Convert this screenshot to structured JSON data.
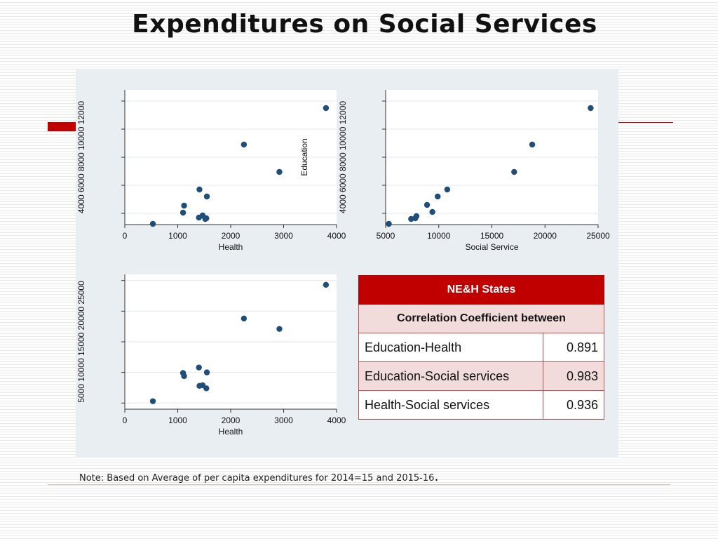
{
  "page": {
    "title": "Expenditures on Social Services"
  },
  "note": {
    "text": "Note: Based on Average of per capita expenditures for 2014=15 and 2015-16",
    "end_mark": "."
  },
  "colors": {
    "accent": "#c00000",
    "marker": "#1f4e79",
    "panel": "#e9eef2"
  },
  "table": {
    "header": "NE&H States",
    "subheader": "Correlation Coefficient between",
    "rows": [
      {
        "label": "Education-Health",
        "value": "0.891"
      },
      {
        "label": "Education-Social services",
        "value": "0.983"
      },
      {
        "label": "Health-Social services",
        "value": "0.936"
      }
    ]
  },
  "chart_data": [
    {
      "type": "scatter",
      "title": "",
      "xlabel": "Health",
      "ylabel": "Education",
      "xlim": [
        0,
        4000
      ],
      "ylim": [
        3200,
        12800
      ],
      "xticks": [
        0,
        1000,
        2000,
        3000,
        4000
      ],
      "yticks": [
        4000,
        6000,
        8000,
        10000,
        12000
      ],
      "x": [
        530,
        1100,
        1120,
        1400,
        1410,
        1470,
        1520,
        1540,
        1550,
        2250,
        2920,
        3800
      ],
      "y": [
        3250,
        4050,
        4550,
        3700,
        5700,
        3850,
        3600,
        3650,
        5200,
        8900,
        6950,
        11500
      ]
    },
    {
      "type": "scatter",
      "title": "",
      "xlabel": "Social Service",
      "ylabel": "Education",
      "xlim": [
        5000,
        25000
      ],
      "ylim": [
        3200,
        12800
      ],
      "xticks": [
        5000,
        10000,
        15000,
        20000,
        25000
      ],
      "yticks": [
        4000,
        6000,
        8000,
        10000,
        12000
      ],
      "x": [
        5300,
        7400,
        7800,
        7900,
        8900,
        9400,
        9900,
        10800,
        17100,
        18800,
        24300
      ],
      "y": [
        3250,
        3600,
        3650,
        3800,
        4600,
        4100,
        5200,
        5700,
        6950,
        8900,
        11500
      ]
    },
    {
      "type": "scatter",
      "title": "",
      "xlabel": "Health",
      "ylabel": "",
      "xlim": [
        0,
        4000
      ],
      "ylim": [
        4000,
        26000
      ],
      "xticks": [
        0,
        1000,
        2000,
        3000,
        4000
      ],
      "yticks": [
        5000,
        10000,
        15000,
        20000,
        25000
      ],
      "x": [
        530,
        1100,
        1120,
        1400,
        1410,
        1470,
        1540,
        1550,
        2250,
        2920,
        3800
      ],
      "y": [
        5300,
        9900,
        9400,
        10800,
        7800,
        7900,
        7400,
        10000,
        18800,
        17100,
        24300
      ]
    }
  ]
}
